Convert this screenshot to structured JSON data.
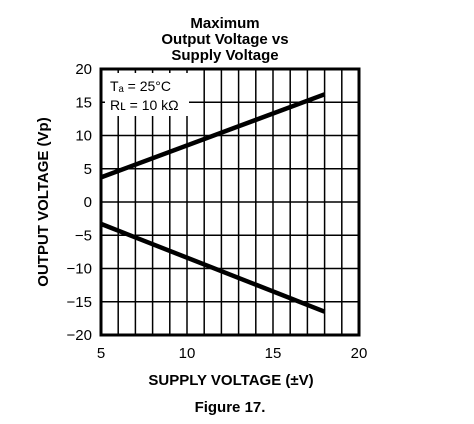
{
  "chart_data": {
    "type": "line",
    "title": [
      "Maximum",
      "Output Voltage vs",
      "Supply Voltage"
    ],
    "xlabel": "SUPPLY VOLTAGE (±V)",
    "ylabel": "OUTPUT VOLTAGE (Vp)",
    "xlim": [
      5,
      20
    ],
    "ylim": [
      -20,
      20
    ],
    "x_ticks": [
      "5",
      "10",
      "15",
      "20"
    ],
    "y_ticks": [
      "20",
      "15",
      "10",
      "5",
      "0",
      "−5",
      "−10",
      "−15",
      "−20"
    ],
    "grid": true,
    "annotation": [
      "Tₐ = 25°C",
      "Rʟ = 10 kΩ"
    ],
    "series": [
      {
        "x": [
          5,
          18
        ],
        "y": [
          3.7,
          16.2
        ]
      },
      {
        "x": [
          5,
          18
        ],
        "y": [
          -3.3,
          -16.5
        ]
      }
    ],
    "caption": "Figure 17."
  }
}
